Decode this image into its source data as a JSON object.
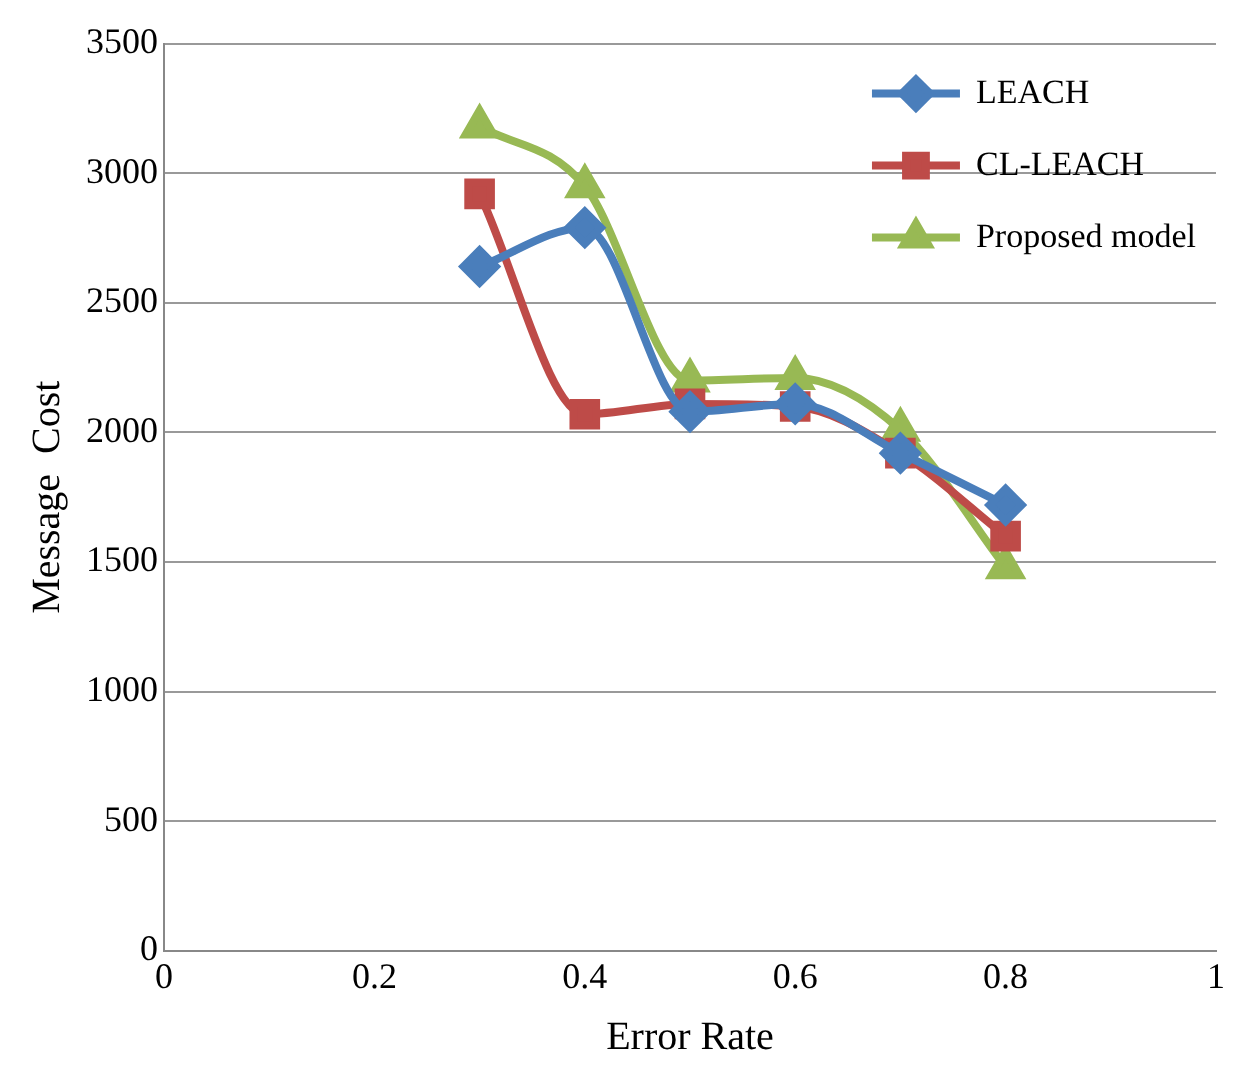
{
  "chart_data": {
    "type": "line",
    "xlabel": "Error Rate",
    "ylabel": "Message  Cost",
    "x": [
      0.3,
      0.4,
      0.5,
      0.6,
      0.7,
      0.8
    ],
    "series": [
      {
        "name": "LEACH",
        "color": "#4a7ebb",
        "marker": "diamond",
        "values": [
          2640,
          2790,
          2080,
          2110,
          1920,
          1720
        ]
      },
      {
        "name": "CL-LEACH",
        "color": "#be4b48",
        "marker": "square",
        "values": [
          2920,
          2070,
          2110,
          2100,
          1920,
          1600
        ]
      },
      {
        "name": "Proposed model",
        "color": "#98b954",
        "marker": "triangle",
        "values": [
          3180,
          2950,
          2200,
          2210,
          2010,
          1480
        ]
      }
    ],
    "xlim": [
      0,
      1
    ],
    "xticks": [
      0,
      0.2,
      0.4,
      0.6,
      0.8,
      1
    ],
    "ylim": [
      0,
      3500
    ],
    "yticks": [
      0,
      500,
      1000,
      1500,
      2000,
      2500,
      3000,
      3500
    ],
    "grid": "y",
    "legend": "top right",
    "line_style": "solid"
  }
}
